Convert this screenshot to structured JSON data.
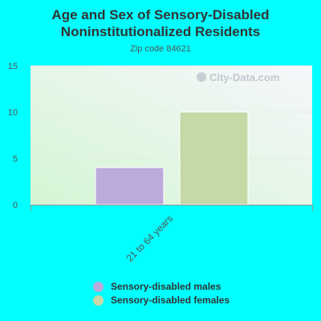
{
  "title": "Age and Sex of Sensory-Disabled Noninstitutionalized Residents",
  "subtitle": "Zip code 84621",
  "watermark": "City-Data.com",
  "colors": {
    "background": "#00ffff",
    "males": "#bcaadb",
    "females": "#c4d9a6"
  },
  "chart_data": {
    "type": "bar",
    "title": "Age and Sex of Sensory-Disabled Noninstitutionalized Residents",
    "subtitle": "Zip code 84621",
    "categories": [
      "21 to 64 years"
    ],
    "series": [
      {
        "name": "Sensory-disabled males",
        "values": [
          4
        ]
      },
      {
        "name": "Sensory-disabled females",
        "values": [
          10
        ]
      }
    ],
    "ylim": [
      0,
      15
    ],
    "yticks": [
      0,
      5,
      10,
      15
    ],
    "grid": true,
    "legend": "bottom"
  }
}
